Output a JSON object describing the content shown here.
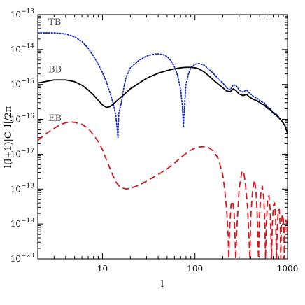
{
  "chart_data": {
    "type": "line",
    "xlabel": "l",
    "ylabel": "l(l+1)|C_l|/2π",
    "xscale": "log",
    "yscale": "log",
    "xlim": [
      2,
      1000
    ],
    "ylim": [
      1e-20,
      1e-13
    ],
    "grid": false,
    "x_ticks": [
      {
        "value": 10,
        "label": "10"
      },
      {
        "value": 100,
        "label": "100"
      },
      {
        "value": 1000,
        "label": "1000"
      }
    ],
    "y_ticks": [
      {
        "exp": -13,
        "label_base": "10",
        "label_exp": "−13"
      },
      {
        "exp": -14,
        "label_base": "10",
        "label_exp": "−14"
      },
      {
        "exp": -15,
        "label_base": "10",
        "label_exp": "−15"
      },
      {
        "exp": -16,
        "label_base": "10",
        "label_exp": "−16"
      },
      {
        "exp": -17,
        "label_base": "10",
        "label_exp": "−17"
      },
      {
        "exp": -18,
        "label_base": "10",
        "label_exp": "−18"
      },
      {
        "exp": -19,
        "label_base": "10",
        "label_exp": "−19"
      },
      {
        "exp": -20,
        "label_base": "10",
        "label_exp": "−20"
      }
    ],
    "series": [
      {
        "name": "TB",
        "color": "#1a2bc4",
        "style": "dotted",
        "label_anchor": {
          "x": 2.6,
          "y": 5e-14
        },
        "points": [
          [
            2,
            3e-14
          ],
          [
            3,
            3e-14
          ],
          [
            4,
            2.8e-14
          ],
          [
            5,
            2.3e-14
          ],
          [
            6,
            1.7e-14
          ],
          [
            7,
            1.1e-14
          ],
          [
            8,
            6.5e-15
          ],
          [
            9,
            3.8e-15
          ],
          [
            10,
            2.2e-15
          ],
          [
            11,
            1.2e-15
          ],
          [
            12,
            6e-16
          ],
          [
            13,
            3e-16
          ],
          [
            14,
            1.2e-16
          ],
          [
            14.7,
            3e-17
          ],
          [
            15,
            1.5e-16
          ],
          [
            16,
            3e-16
          ],
          [
            17,
            8e-16
          ],
          [
            18,
            1.6e-15
          ],
          [
            20,
            3e-15
          ],
          [
            25,
            5e-15
          ],
          [
            30,
            6.5e-15
          ],
          [
            35,
            7.3e-15
          ],
          [
            40,
            7.5e-15
          ],
          [
            45,
            7.2e-15
          ],
          [
            50,
            6.3e-15
          ],
          [
            55,
            4.8e-15
          ],
          [
            60,
            3.2e-15
          ],
          [
            65,
            1.8e-15
          ],
          [
            70,
            7e-16
          ],
          [
            73,
            2.5e-16
          ],
          [
            75,
            6e-17
          ],
          [
            77,
            2.5e-16
          ],
          [
            80,
            1e-15
          ],
          [
            85,
            2e-15
          ],
          [
            90,
            3e-15
          ],
          [
            100,
            3.8e-15
          ],
          [
            110,
            4e-15
          ],
          [
            125,
            3.6e-15
          ],
          [
            140,
            2.8e-15
          ],
          [
            160,
            2e-15
          ],
          [
            180,
            1.4e-15
          ],
          [
            200,
            1.1e-15
          ],
          [
            220,
            8e-16
          ],
          [
            240,
            7e-16
          ],
          [
            260,
            1e-15
          ],
          [
            280,
            9e-16
          ],
          [
            300,
            7e-16
          ],
          [
            330,
            6e-16
          ],
          [
            360,
            7e-16
          ],
          [
            390,
            5.5e-16
          ],
          [
            430,
            4.5e-16
          ],
          [
            470,
            4e-16
          ],
          [
            520,
            3.2e-16
          ],
          [
            560,
            3e-16
          ],
          [
            600,
            2.3e-16
          ],
          [
            650,
            2e-16
          ],
          [
            700,
            1.6e-16
          ],
          [
            760,
            1.4e-16
          ],
          [
            820,
            1.1e-16
          ],
          [
            880,
            8.5e-17
          ],
          [
            940,
            6.5e-17
          ],
          [
            1000,
            5e-17
          ]
        ]
      },
      {
        "name": "BB",
        "color": "#000000",
        "style": "solid",
        "label_anchor": {
          "x": 2.6,
          "y": 2.2e-15
        },
        "points": [
          [
            2,
            1.1e-15
          ],
          [
            3,
            1.35e-15
          ],
          [
            4,
            1.35e-15
          ],
          [
            5,
            1.2e-15
          ],
          [
            6,
            9.5e-16
          ],
          [
            7,
            7e-16
          ],
          [
            8,
            5e-16
          ],
          [
            9,
            3.5e-16
          ],
          [
            10,
            2.6e-16
          ],
          [
            11,
            2.2e-16
          ],
          [
            12,
            2.3e-16
          ],
          [
            13,
            2.7e-16
          ],
          [
            15,
            3.8e-16
          ],
          [
            18,
            5.8e-16
          ],
          [
            20,
            7.5e-16
          ],
          [
            25,
            1.1e-15
          ],
          [
            30,
            1.5e-15
          ],
          [
            35,
            1.8e-15
          ],
          [
            40,
            2.1e-15
          ],
          [
            50,
            2.5e-15
          ],
          [
            60,
            2.8e-15
          ],
          [
            70,
            3e-15
          ],
          [
            80,
            3.1e-15
          ],
          [
            90,
            3.1e-15
          ],
          [
            100,
            3e-15
          ],
          [
            110,
            2.8e-15
          ],
          [
            125,
            2.3e-15
          ],
          [
            140,
            1.8e-15
          ],
          [
            160,
            1.3e-15
          ],
          [
            180,
            1e-15
          ],
          [
            200,
            8e-16
          ],
          [
            220,
            6.5e-16
          ],
          [
            240,
            6.2e-16
          ],
          [
            260,
            7.5e-16
          ],
          [
            280,
            6.5e-16
          ],
          [
            300,
            5.3e-16
          ],
          [
            330,
            4.8e-16
          ],
          [
            360,
            5.2e-16
          ],
          [
            390,
            4.3e-16
          ],
          [
            430,
            3.7e-16
          ],
          [
            470,
            3.4e-16
          ],
          [
            520,
            2.8e-16
          ],
          [
            560,
            2.6e-16
          ],
          [
            600,
            2.1e-16
          ],
          [
            650,
            1.9e-16
          ],
          [
            700,
            1.5e-16
          ],
          [
            760,
            1.3e-16
          ],
          [
            820,
            1.05e-16
          ],
          [
            880,
            8.5e-17
          ],
          [
            940,
            6.5e-17
          ],
          [
            1000,
            4e-17
          ]
        ]
      },
      {
        "name": "EB",
        "color": "#e0151b",
        "style": "dashed",
        "label_anchor": {
          "x": 2.6,
          "y": 9e-17
        },
        "points": [
          [
            2,
            2.5e-17
          ],
          [
            2.5,
            4e-17
          ],
          [
            3,
            5.5e-17
          ],
          [
            3.5,
            7e-17
          ],
          [
            4,
            8e-17
          ],
          [
            4.5,
            8.5e-17
          ],
          [
            5,
            8.2e-17
          ],
          [
            6,
            7.2e-17
          ],
          [
            7,
            5.5e-17
          ],
          [
            8,
            3.6e-17
          ],
          [
            9,
            2.3e-17
          ],
          [
            10,
            1.35e-17
          ],
          [
            11,
            7e-18
          ],
          [
            12,
            4e-18
          ],
          [
            13,
            2.4e-18
          ],
          [
            14,
            1.6e-18
          ],
          [
            15,
            1.25e-18
          ],
          [
            16,
            1.1e-18
          ],
          [
            18,
            1e-18
          ],
          [
            20,
            1.05e-18
          ],
          [
            25,
            1.3e-18
          ],
          [
            30,
            1.7e-18
          ],
          [
            40,
            2.6e-18
          ],
          [
            50,
            3.8e-18
          ],
          [
            60,
            5.5e-18
          ],
          [
            70,
            8e-18
          ],
          [
            80,
            1.05e-17
          ],
          [
            90,
            1.3e-17
          ],
          [
            100,
            1.5e-17
          ],
          [
            110,
            1.6e-17
          ],
          [
            125,
            1.65e-17
          ],
          [
            140,
            1.55e-17
          ],
          [
            160,
            1.2e-17
          ],
          [
            180,
            7e-18
          ],
          [
            200,
            2.5e-18
          ],
          [
            210,
            9e-19
          ],
          [
            220,
            2.5e-19
          ],
          [
            228,
            5e-20
          ],
          [
            232,
            1e-20
          ],
          [
            236,
            6e-20
          ],
          [
            245,
            3.5e-19
          ],
          [
            255,
            4.5e-19
          ],
          [
            265,
            2e-19
          ],
          [
            272,
            3e-20
          ],
          [
            276,
            1e-20
          ],
          [
            282,
            6e-20
          ],
          [
            300,
            1e-18
          ],
          [
            320,
            3e-18
          ],
          [
            335,
            3.2e-18
          ],
          [
            350,
            1.5e-18
          ],
          [
            370,
            3e-19
          ],
          [
            385,
            3e-20
          ],
          [
            392,
            1e-20
          ],
          [
            400,
            1.5e-19
          ],
          [
            420,
            1e-18
          ],
          [
            440,
            1.8e-18
          ],
          [
            455,
            1e-18
          ],
          [
            470,
            2e-19
          ],
          [
            480,
            3e-20
          ],
          [
            486,
            1e-20
          ],
          [
            495,
            1.2e-19
          ],
          [
            515,
            8e-19
          ],
          [
            535,
            1.2e-18
          ],
          [
            555,
            5e-19
          ],
          [
            570,
            8e-20
          ],
          [
            578,
            1e-20
          ],
          [
            590,
            1e-19
          ],
          [
            610,
            5e-19
          ],
          [
            630,
            6.5e-19
          ],
          [
            650,
            2.5e-19
          ],
          [
            665,
            3e-20
          ],
          [
            672,
            1e-20
          ],
          [
            685,
            1e-19
          ],
          [
            705,
            3.5e-19
          ],
          [
            725,
            4e-19
          ],
          [
            745,
            1.2e-19
          ],
          [
            755,
            2e-20
          ],
          [
            762,
            1e-20
          ],
          [
            775,
            8e-20
          ],
          [
            795,
            2.5e-19
          ],
          [
            815,
            2.6e-19
          ],
          [
            835,
            8e-20
          ],
          [
            845,
            1e-20
          ],
          [
            855,
            7e-20
          ],
          [
            875,
            1.8e-19
          ],
          [
            895,
            1.8e-19
          ],
          [
            915,
            6e-20
          ],
          [
            925,
            1e-20
          ],
          [
            935,
            6e-20
          ],
          [
            955,
            1.3e-19
          ],
          [
            975,
            1.2e-19
          ],
          [
            1000,
            5e-20
          ]
        ]
      }
    ]
  }
}
